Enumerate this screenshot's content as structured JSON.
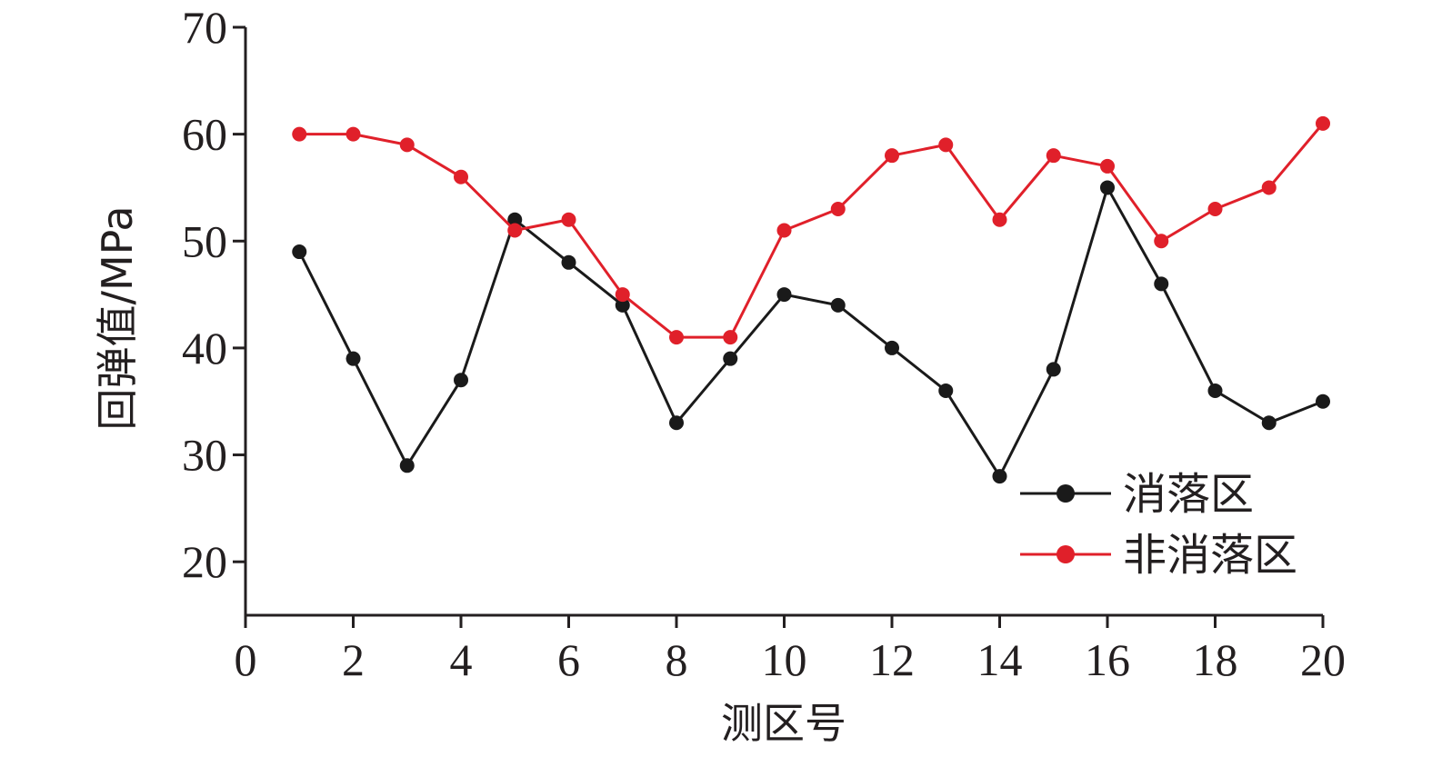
{
  "chart_data": {
    "type": "line",
    "xlabel": "测区号",
    "ylabel": "回弹值/MPa",
    "xlim": [
      0,
      20
    ],
    "ylim": [
      15,
      70
    ],
    "xticks": [
      0,
      2,
      4,
      6,
      8,
      10,
      12,
      14,
      16,
      18,
      20
    ],
    "yticks": [
      20,
      30,
      40,
      50,
      60,
      70
    ],
    "grid": false,
    "legend_position": "bottom-right",
    "x": [
      1,
      2,
      3,
      4,
      5,
      6,
      7,
      8,
      9,
      10,
      11,
      12,
      13,
      14,
      15,
      16,
      17,
      18,
      19,
      20
    ],
    "series": [
      {
        "name": "消落区",
        "color": "#1a1a1a",
        "values": [
          49,
          39,
          29,
          37,
          52,
          48,
          44,
          33,
          39,
          45,
          44,
          40,
          36,
          28,
          38,
          55,
          46,
          36,
          33,
          35
        ]
      },
      {
        "name": "非消落区",
        "color": "#e0202a",
        "values": [
          60,
          60,
          59,
          56,
          51,
          52,
          45,
          41,
          41,
          51,
          53,
          58,
          59,
          52,
          58,
          57,
          50,
          53,
          55,
          61
        ]
      }
    ]
  }
}
